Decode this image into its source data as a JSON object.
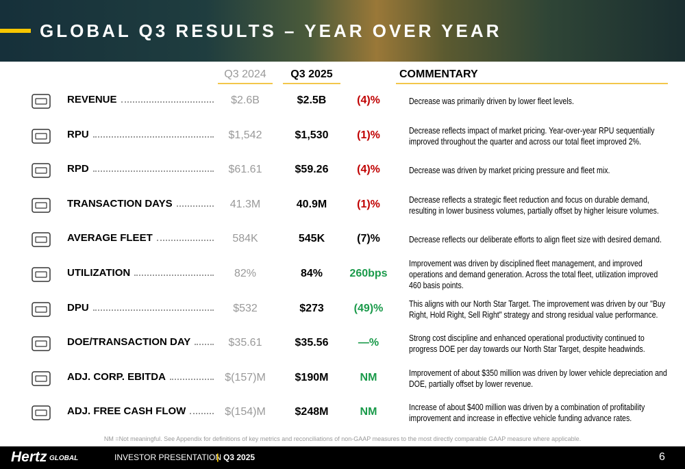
{
  "header": {
    "title": "GLOBAL Q3 RESULTS – YEAR OVER YEAR"
  },
  "columns": {
    "prior": "Q3 2024",
    "current": "Q3 2025",
    "commentary": "COMMENTARY"
  },
  "rows": [
    {
      "label": "REVENUE",
      "prior": "$2.6B",
      "current": "$2.5B",
      "change": "(4)%",
      "change_color": "#c00000",
      "commentary": "Decrease was primarily driven by lower fleet levels."
    },
    {
      "label": "RPU",
      "prior": "$1,542",
      "current": "$1,530",
      "change": "(1)%",
      "change_color": "#c00000",
      "commentary": "Decrease reflects impact of market pricing. Year-over-year RPU sequentially improved throughout the quarter and across our total fleet improved 2%."
    },
    {
      "label": "RPD",
      "prior": "$61.61",
      "current": "$59.26",
      "change": "(4)%",
      "change_color": "#c00000",
      "commentary": "Decrease was driven by market pricing pressure and fleet mix."
    },
    {
      "label": "TRANSACTION DAYS",
      "prior": "41.3M",
      "current": "40.9M",
      "change": "(1)%",
      "change_color": "#c00000",
      "commentary": "Decrease reflects a strategic fleet reduction and focus on durable demand, resulting in lower business volumes, partially offset by higher leisure volumes."
    },
    {
      "label": "AVERAGE FLEET",
      "prior": "584K",
      "current": "545K",
      "change": "(7)%",
      "change_color": "#000000",
      "commentary": "Decrease reflects our deliberate efforts to align fleet size with desired demand."
    },
    {
      "label": "UTILIZATION",
      "prior": "82%",
      "current": "84%",
      "change": "260bps",
      "change_color": "#1a9a4a",
      "commentary": "Improvement was driven by disciplined fleet management, and improved operations and demand generation. Across the total fleet, utilization improved 460 basis points."
    },
    {
      "label": "DPU",
      "prior": "$532",
      "current": "$273",
      "change": "(49)%",
      "change_color": "#1a9a4a",
      "commentary": "This aligns with our North Star Target. The improvement was driven by our \"Buy Right, Hold Right, Sell Right\" strategy and strong residual value performance."
    },
    {
      "label": "DOE/TRANSACTION DAY",
      "prior": "$35.61",
      "current": "$35.56",
      "change": "—%",
      "change_color": "#1a9a4a",
      "commentary": "Strong cost discipline and enhanced operational productivity continued to progress DOE per day towards our North Star Target, despite headwinds."
    },
    {
      "label": "ADJ. CORP. EBITDA",
      "prior": "$(157)M",
      "current": "$190M",
      "change": "NM",
      "change_color": "#1a9a4a",
      "commentary": "Improvement of about $350 million was driven by lower vehicle depreciation and DOE, partially offset by lower revenue."
    },
    {
      "label": "ADJ. FREE CASH FLOW",
      "prior": "$(154)M",
      "current": "$248M",
      "change": "NM",
      "change_color": "#1a9a4a",
      "commentary": "Increase of about $400 million was driven by a combination of profitability improvement and increase in effective vehicle funding advance rates."
    }
  ],
  "footnote": "NM =Not meaningful. See Appendix for definitions of key metrics and reconciliations of non-GAAP measures to the most directly comparable GAAP measure where applicable.",
  "footer": {
    "logo": "Hertz",
    "logo_suffix": "GLOBAL",
    "presentation": "INVESTOR PRESENTATION",
    "separator": "|",
    "period": "Q3 2025",
    "page": "6"
  }
}
